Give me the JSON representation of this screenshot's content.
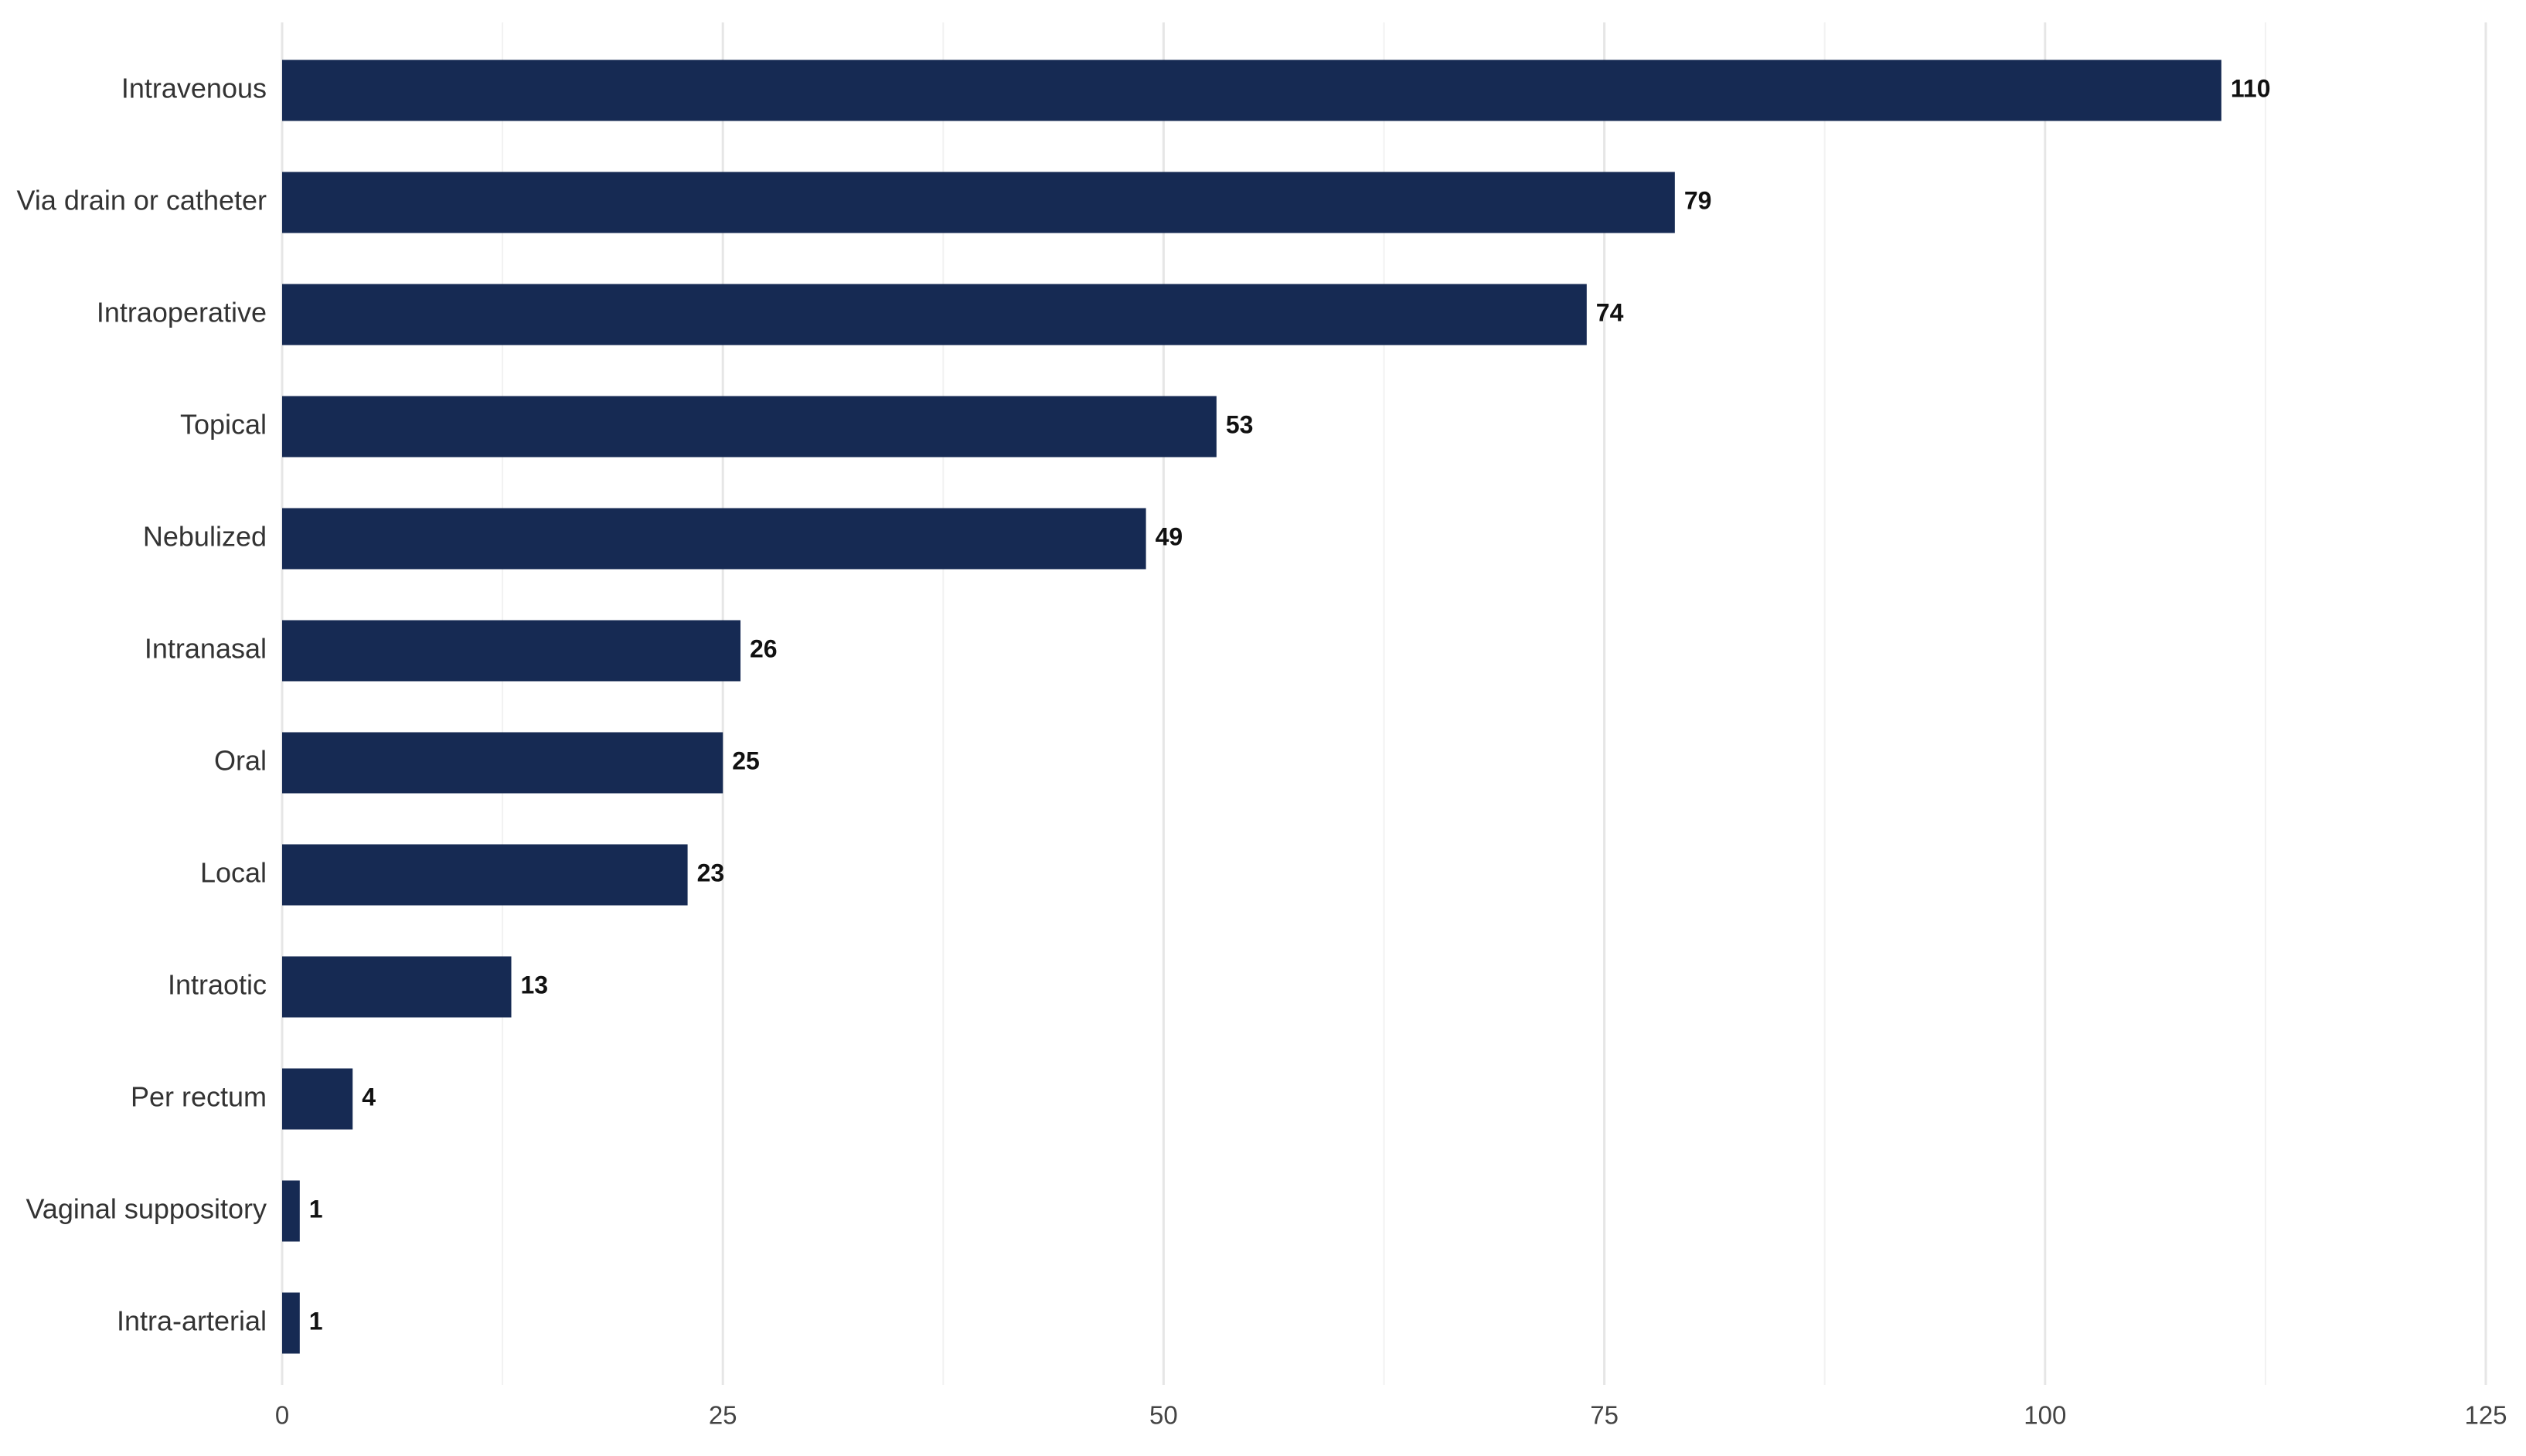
{
  "chart_data": {
    "type": "barh",
    "categories": [
      "Intravenous",
      "Via drain or catheter",
      "Intraoperative",
      "Topical",
      "Nebulized",
      "Intranasal",
      "Oral",
      "Local",
      "Intraotic",
      "Per rectum",
      "Vaginal suppository",
      "Intra-arterial"
    ],
    "values": [
      110,
      79,
      74,
      53,
      49,
      26,
      25,
      23,
      13,
      4,
      1,
      1
    ],
    "color": "#162a53",
    "xlim": [
      0,
      125
    ],
    "xticks": [
      0,
      25,
      50,
      75,
      100,
      125
    ],
    "xminor_ticks": [
      12.5,
      37.5,
      62.5,
      87.5,
      112.5
    ],
    "grid": true
  }
}
